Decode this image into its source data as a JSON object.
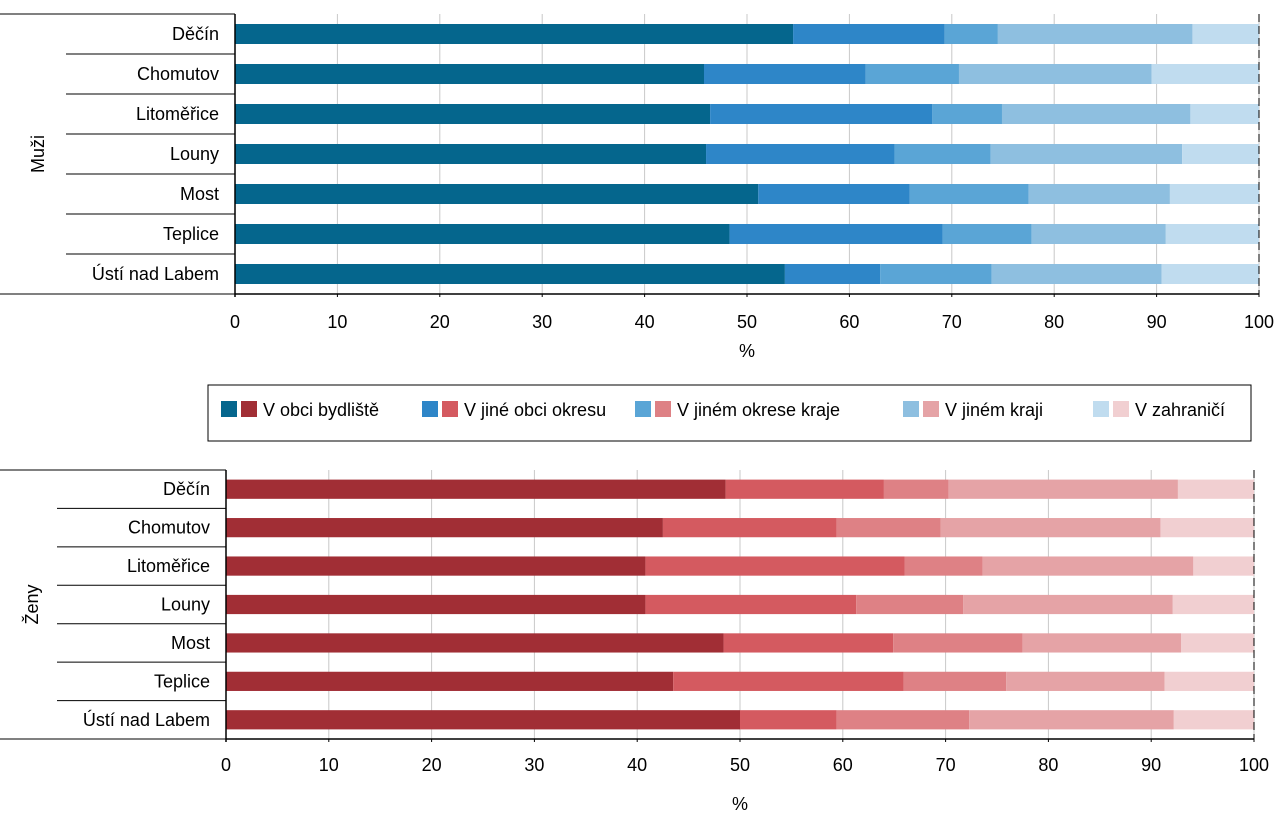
{
  "chart_data": [
    {
      "type": "bar",
      "orientation": "horizontal",
      "stacked": true,
      "group_label": "Muži",
      "categories": [
        "Děčín",
        "Chomutov",
        "Litoměřice",
        "Louny",
        "Most",
        "Teplice",
        "Ústí nad Labem"
      ],
      "xlabel": "%",
      "xlim": [
        0,
        100
      ],
      "x_ticks": [
        "0",
        "10",
        "20",
        "30",
        "40",
        "50",
        "60",
        "70",
        "80",
        "90",
        "100"
      ],
      "grid": "vertical",
      "colors": [
        "#05668d",
        "#2e86c8",
        "#5aa5d6",
        "#8ebfe0",
        "#c0dcef"
      ],
      "series": [
        {
          "name": "V obci bydliště",
          "values": [
            54.5,
            45.8,
            46.4,
            46.0,
            51.1,
            48.3,
            53.7
          ]
        },
        {
          "name": "V jiné obci okresu",
          "values": [
            14.8,
            15.8,
            21.7,
            18.4,
            14.8,
            20.8,
            9.3
          ]
        },
        {
          "name": "V jiném okrese kraje",
          "values": [
            5.2,
            9.1,
            6.8,
            9.4,
            11.6,
            8.7,
            10.9
          ]
        },
        {
          "name": "V jiném kraji",
          "values": [
            19.0,
            18.8,
            18.4,
            18.7,
            13.8,
            13.1,
            16.6
          ]
        },
        {
          "name": "V zahraničí",
          "values": [
            6.5,
            10.5,
            6.7,
            7.5,
            8.7,
            9.1,
            9.5
          ]
        }
      ]
    },
    {
      "type": "bar",
      "orientation": "horizontal",
      "stacked": true,
      "group_label": "Ženy",
      "categories": [
        "Děčín",
        "Chomutov",
        "Litoměřice",
        "Louny",
        "Most",
        "Teplice",
        "Ústí nad Labem"
      ],
      "xlabel": "%",
      "xlim": [
        0,
        100
      ],
      "x_ticks": [
        "0",
        "10",
        "20",
        "30",
        "40",
        "50",
        "60",
        "70",
        "80",
        "90",
        "100"
      ],
      "grid": "vertical",
      "colors": [
        "#a12e35",
        "#d45a60",
        "#de8185",
        "#e5a3a6",
        "#f1cfd1"
      ],
      "series": [
        {
          "name": "V obci bydliště",
          "values": [
            48.6,
            42.5,
            40.8,
            40.8,
            48.4,
            43.5,
            50.0
          ]
        },
        {
          "name": "V jiné obci okresu",
          "values": [
            15.4,
            16.9,
            25.2,
            20.5,
            16.5,
            22.4,
            9.4
          ]
        },
        {
          "name": "V jiném okrese kraje",
          "values": [
            6.3,
            10.1,
            7.6,
            10.4,
            12.6,
            10.0,
            12.9
          ]
        },
        {
          "name": "V jiném kraji",
          "values": [
            22.3,
            21.4,
            20.5,
            20.4,
            15.4,
            15.4,
            19.9
          ]
        },
        {
          "name": "V zahraničí",
          "values": [
            7.4,
            9.1,
            5.9,
            7.9,
            7.1,
            8.7,
            7.8
          ]
        }
      ]
    }
  ],
  "legend": {
    "placement": "between-charts",
    "items": [
      {
        "label": "V obci bydliště",
        "colors": [
          "#05668d",
          "#a12e35"
        ]
      },
      {
        "label": "V jiné obci okresu",
        "colors": [
          "#2e86c8",
          "#d45a60"
        ]
      },
      {
        "label": "V jiném okrese kraje",
        "colors": [
          "#5aa5d6",
          "#de8185"
        ]
      },
      {
        "label": "V jiném kraji",
        "colors": [
          "#8ebfe0",
          "#e5a3a6"
        ]
      },
      {
        "label": "V zahraničí",
        "colors": [
          "#c0dcef",
          "#f1cfd1"
        ]
      }
    ]
  }
}
